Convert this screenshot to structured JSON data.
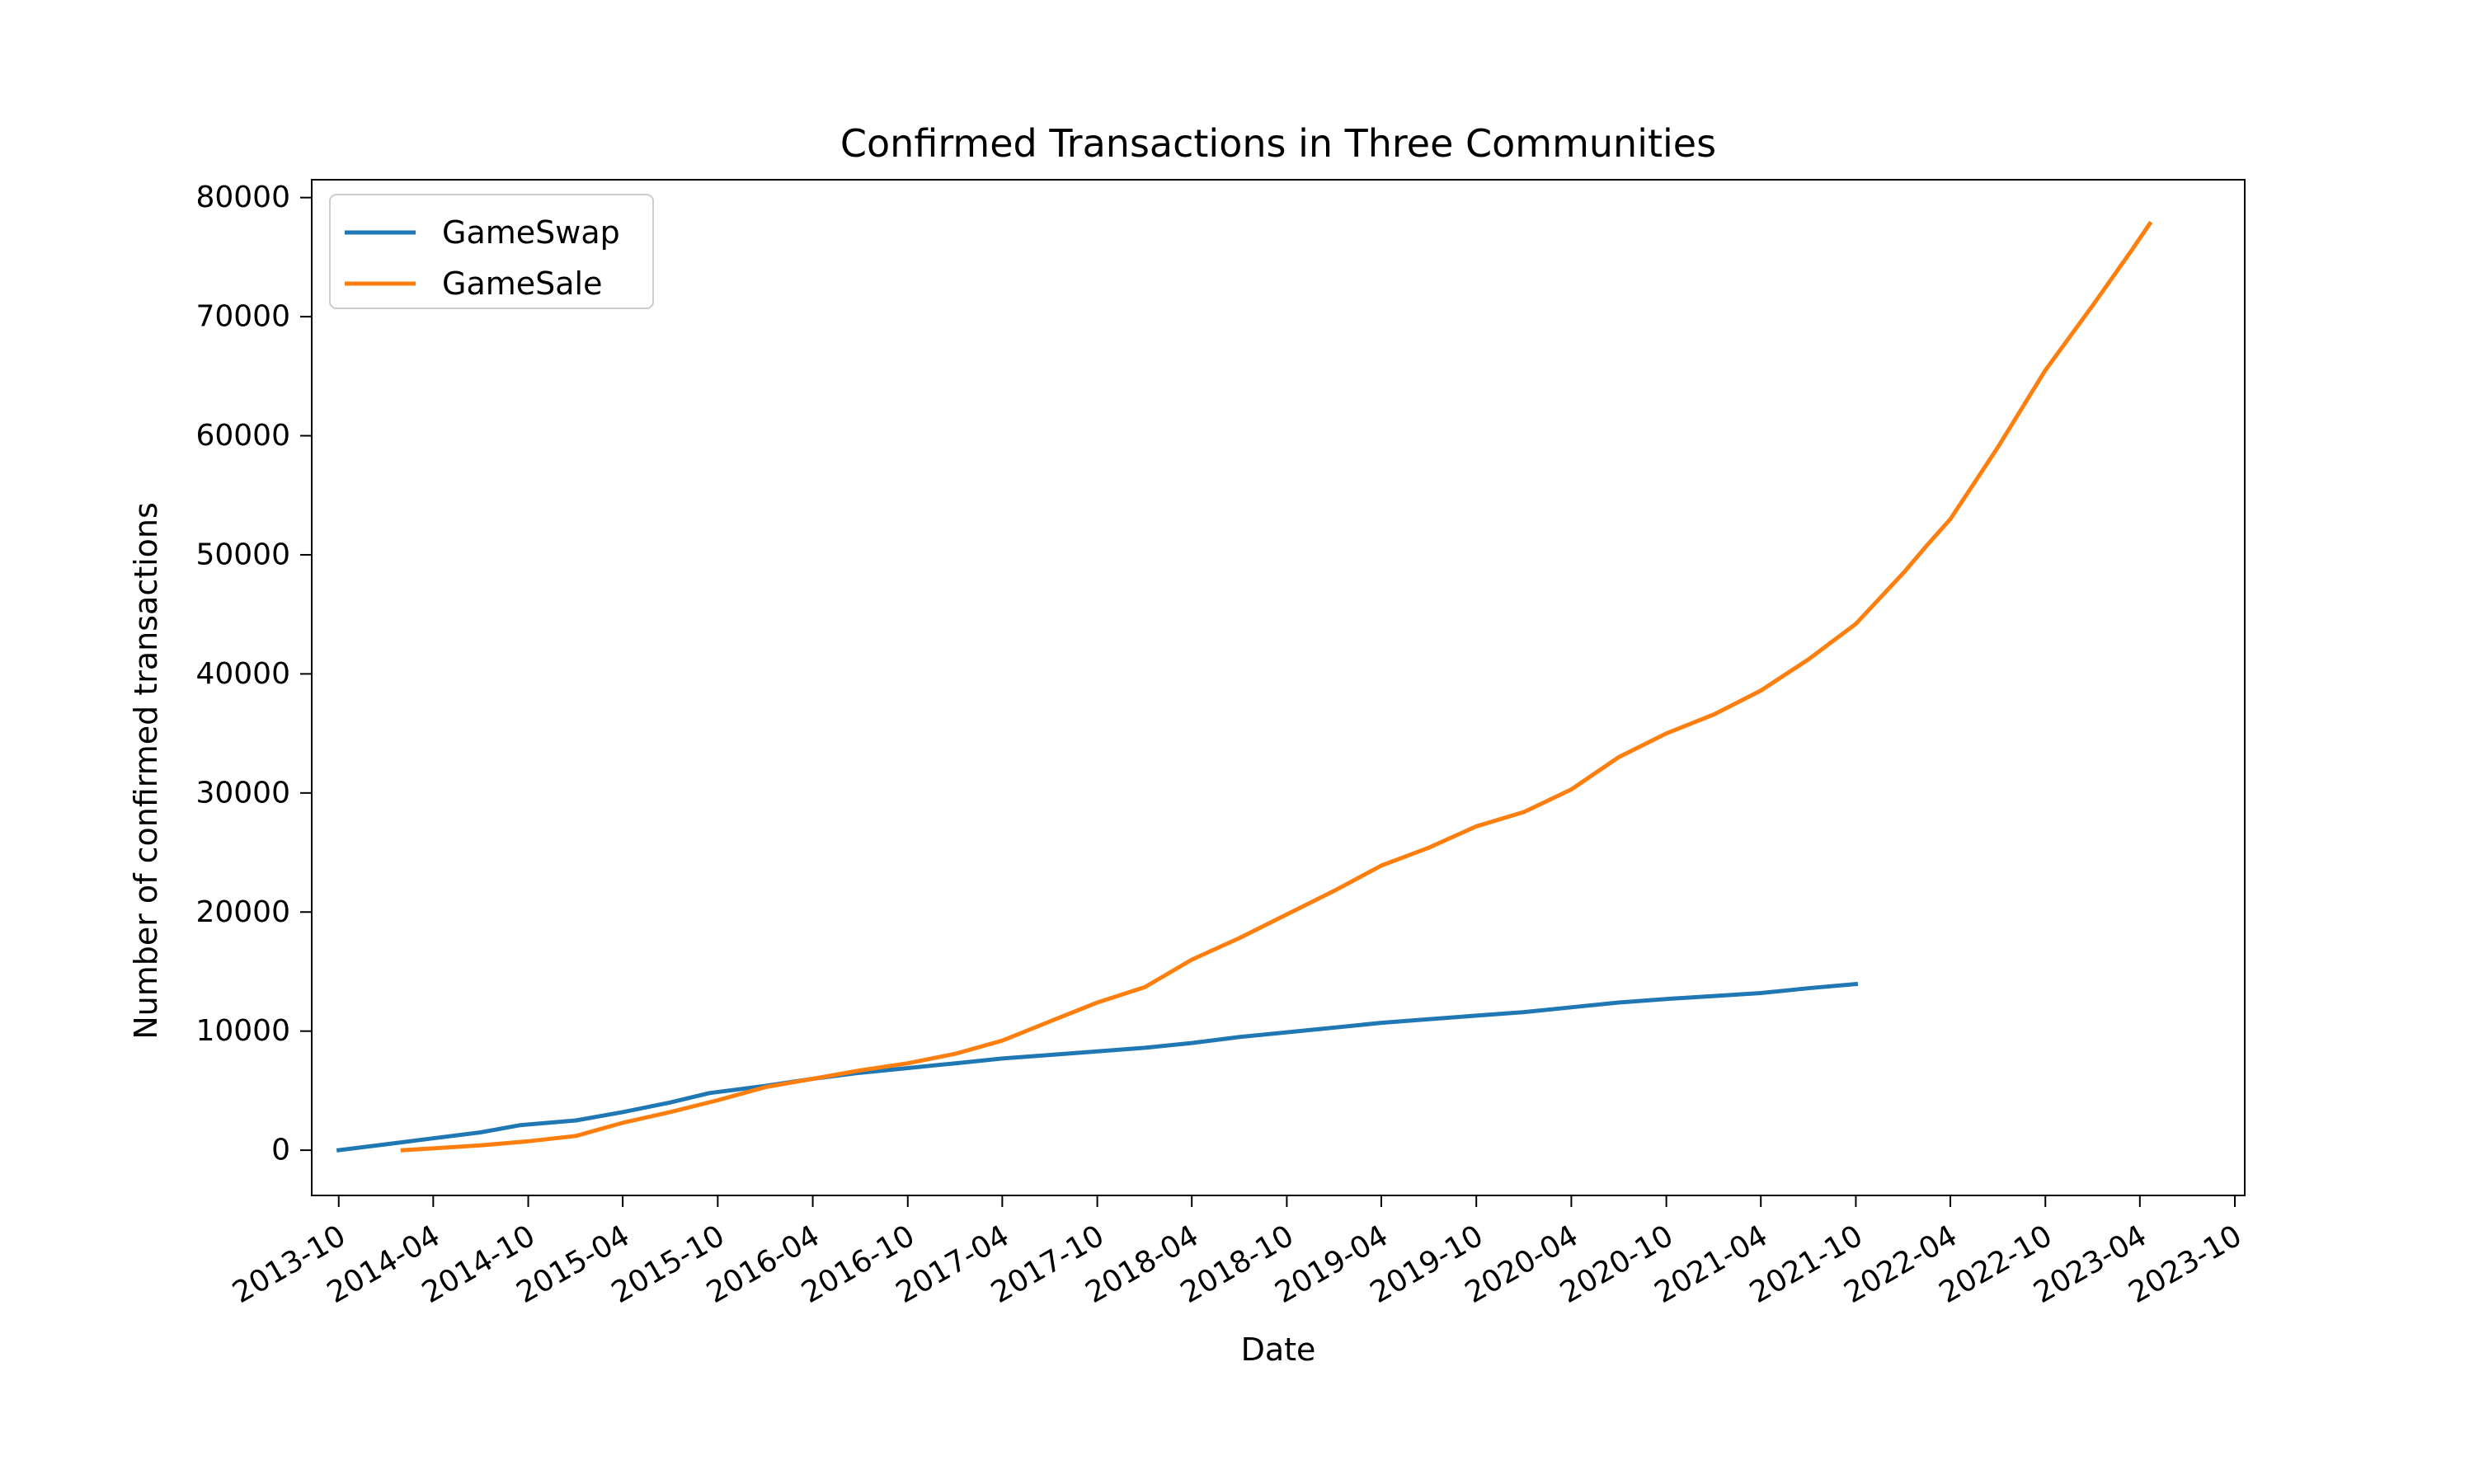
{
  "chart_data": {
    "type": "line",
    "title": "Confirmed Transactions in Three Communities",
    "xlabel": "Date",
    "ylabel": "Number of confirmed transactions",
    "xlim": [
      "2013-08-10",
      "2023-10-20"
    ],
    "ylim": [
      -3800,
      81500
    ],
    "x_ticks": [
      "2013-10",
      "2014-04",
      "2014-10",
      "2015-04",
      "2015-10",
      "2016-04",
      "2016-10",
      "2017-04",
      "2017-10",
      "2018-04",
      "2018-10",
      "2019-04",
      "2019-10",
      "2020-04",
      "2020-10",
      "2021-04",
      "2021-10",
      "2022-04",
      "2022-10",
      "2023-04",
      "2023-10"
    ],
    "y_ticks": [
      0,
      10000,
      20000,
      30000,
      40000,
      50000,
      60000,
      70000,
      80000
    ],
    "grid": false,
    "legend": "upper left",
    "series": [
      {
        "name": "GameSwap",
        "color": "#1f77b4",
        "points": [
          [
            "2013-10-01",
            0
          ],
          [
            "2014-01-01",
            500
          ],
          [
            "2014-04-01",
            1000
          ],
          [
            "2014-07-01",
            1500
          ],
          [
            "2014-09-15",
            2100
          ],
          [
            "2015-01-01",
            2500
          ],
          [
            "2015-04-01",
            3200
          ],
          [
            "2015-07-01",
            4000
          ],
          [
            "2015-09-15",
            4800
          ],
          [
            "2016-01-01",
            5400
          ],
          [
            "2016-04-01",
            6000
          ],
          [
            "2016-07-01",
            6500
          ],
          [
            "2016-10-01",
            6900
          ],
          [
            "2017-01-01",
            7300
          ],
          [
            "2017-04-01",
            7700
          ],
          [
            "2017-07-01",
            8000
          ],
          [
            "2017-10-01",
            8300
          ],
          [
            "2018-01-01",
            8600
          ],
          [
            "2018-04-01",
            9000
          ],
          [
            "2018-07-01",
            9500
          ],
          [
            "2018-10-01",
            9900
          ],
          [
            "2019-01-01",
            10300
          ],
          [
            "2019-04-01",
            10700
          ],
          [
            "2019-07-01",
            11000
          ],
          [
            "2019-10-01",
            11300
          ],
          [
            "2020-01-01",
            11600
          ],
          [
            "2020-04-01",
            12000
          ],
          [
            "2020-07-01",
            12400
          ],
          [
            "2020-10-01",
            12700
          ],
          [
            "2021-01-01",
            12950
          ],
          [
            "2021-04-01",
            13200
          ],
          [
            "2021-07-01",
            13600
          ],
          [
            "2021-10-01",
            13950
          ]
        ]
      },
      {
        "name": "GameSale",
        "color": "#ff7f0e",
        "points": [
          [
            "2014-02-01",
            0
          ],
          [
            "2014-04-01",
            150
          ],
          [
            "2014-07-01",
            400
          ],
          [
            "2014-10-01",
            750
          ],
          [
            "2015-01-01",
            1200
          ],
          [
            "2015-04-01",
            2300
          ],
          [
            "2015-07-01",
            3200
          ],
          [
            "2015-10-01",
            4200
          ],
          [
            "2016-01-01",
            5300
          ],
          [
            "2016-04-01",
            6000
          ],
          [
            "2016-07-01",
            6700
          ],
          [
            "2016-10-01",
            7300
          ],
          [
            "2017-01-01",
            8100
          ],
          [
            "2017-04-01",
            9200
          ],
          [
            "2017-07-01",
            10800
          ],
          [
            "2017-10-01",
            12400
          ],
          [
            "2018-01-01",
            13700
          ],
          [
            "2018-04-01",
            16000
          ],
          [
            "2018-07-01",
            17800
          ],
          [
            "2018-10-01",
            19800
          ],
          [
            "2019-01-01",
            21800
          ],
          [
            "2019-04-01",
            23900
          ],
          [
            "2019-07-01",
            25400
          ],
          [
            "2019-10-01",
            27200
          ],
          [
            "2020-01-01",
            28400
          ],
          [
            "2020-04-01",
            30300
          ],
          [
            "2020-07-01",
            33000
          ],
          [
            "2020-10-01",
            35000
          ],
          [
            "2021-01-01",
            36600
          ],
          [
            "2021-04-01",
            38600
          ],
          [
            "2021-07-01",
            41200
          ],
          [
            "2021-10-01",
            44200
          ],
          [
            "2022-01-01",
            48500
          ],
          [
            "2022-02-15",
            50800
          ],
          [
            "2022-04-01",
            53000
          ],
          [
            "2022-07-01",
            59000
          ],
          [
            "2022-10-01",
            65500
          ],
          [
            "2023-01-01",
            71000
          ],
          [
            "2023-03-15",
            75500
          ],
          [
            "2023-04-20",
            77800
          ]
        ]
      }
    ]
  }
}
